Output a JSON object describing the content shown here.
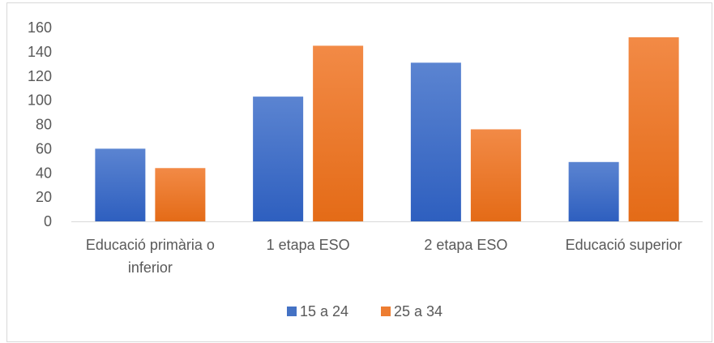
{
  "chart_data": {
    "type": "bar",
    "categories": [
      [
        "Educació primària o",
        "inferior"
      ],
      [
        "1 etapa ESO"
      ],
      [
        "2 etapa ESO"
      ],
      [
        "Educació superior"
      ]
    ],
    "series": [
      {
        "name": "15 a 24",
        "values": [
          60,
          103,
          131,
          49
        ],
        "color": "#4472c4"
      },
      {
        "name": "25 a 34",
        "values": [
          44,
          145,
          76,
          152
        ],
        "color": "#ed7d31"
      }
    ],
    "yticks": [
      "0",
      "20",
      "40",
      "60",
      "80",
      "100",
      "120",
      "140",
      "160"
    ],
    "ylim": [
      0,
      160
    ],
    "grid": false,
    "legend_position": "bottom"
  }
}
